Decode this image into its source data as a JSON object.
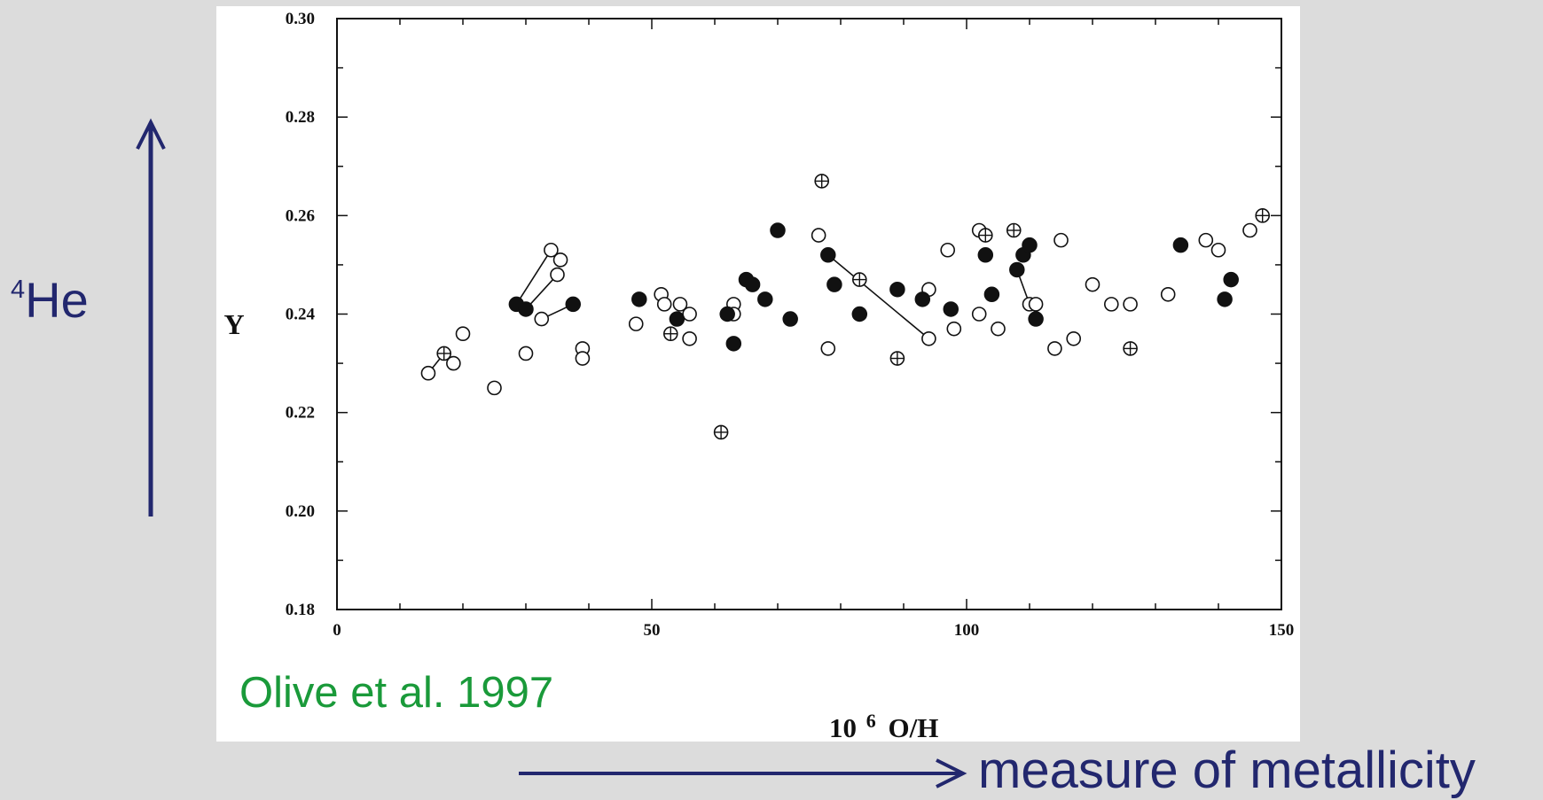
{
  "annotations": {
    "he_mass": "4",
    "he_symbol": "He",
    "metallicity": "measure of metallicity",
    "citation": "Olive et al. 1997"
  },
  "colors": {
    "background": "#dcdcdc",
    "annotation": "#22276e",
    "citation": "#1a9a3a",
    "marker": "#111111"
  },
  "chart_data": {
    "type": "scatter",
    "title": "",
    "xlabel_exp": "6",
    "xlabel_prefix": "10",
    "xlabel_rest": "O/H",
    "ylabel": "Y",
    "xlim": [
      0,
      150
    ],
    "ylim": [
      0.18,
      0.3
    ],
    "xticks": [
      0,
      50,
      100,
      150
    ],
    "xtick_labels": [
      "0",
      "50",
      "100",
      "150"
    ],
    "yticks": [
      0.18,
      0.2,
      0.22,
      0.24,
      0.26,
      0.28,
      0.3
    ],
    "ytick_labels": [
      "0.18",
      "0.20",
      "0.22",
      "0.24",
      "0.26",
      "0.28",
      "0.30"
    ],
    "grid": false,
    "series": [
      {
        "marker": "open-circle",
        "points": [
          [
            14.5,
            0.228
          ],
          [
            18.5,
            0.23
          ],
          [
            20,
            0.236
          ],
          [
            25,
            0.225
          ],
          [
            30,
            0.232
          ],
          [
            32.5,
            0.239
          ],
          [
            34,
            0.253
          ],
          [
            35,
            0.248
          ],
          [
            35.5,
            0.251
          ],
          [
            39,
            0.233
          ],
          [
            39,
            0.231
          ],
          [
            47.5,
            0.238
          ],
          [
            51.5,
            0.244
          ],
          [
            52,
            0.242
          ],
          [
            54.5,
            0.242
          ],
          [
            56,
            0.24
          ],
          [
            56,
            0.235
          ],
          [
            63,
            0.242
          ],
          [
            63,
            0.24
          ],
          [
            76.5,
            0.256
          ],
          [
            78,
            0.233
          ],
          [
            94,
            0.235
          ],
          [
            94,
            0.245
          ],
          [
            97,
            0.253
          ],
          [
            98,
            0.237
          ],
          [
            102,
            0.24
          ],
          [
            102,
            0.257
          ],
          [
            105,
            0.237
          ],
          [
            110,
            0.242
          ],
          [
            111,
            0.242
          ],
          [
            114,
            0.233
          ],
          [
            115,
            0.255
          ],
          [
            117,
            0.235
          ],
          [
            120,
            0.246
          ],
          [
            123,
            0.242
          ],
          [
            126,
            0.242
          ],
          [
            132,
            0.244
          ],
          [
            138,
            0.255
          ],
          [
            140,
            0.253
          ],
          [
            145,
            0.257
          ]
        ]
      },
      {
        "marker": "filled-circle",
        "points": [
          [
            28.5,
            0.242
          ],
          [
            30,
            0.241
          ],
          [
            37.5,
            0.242
          ],
          [
            48,
            0.243
          ],
          [
            54,
            0.239
          ],
          [
            62,
            0.24
          ],
          [
            63,
            0.234
          ],
          [
            65,
            0.247
          ],
          [
            66,
            0.246
          ],
          [
            68,
            0.243
          ],
          [
            70,
            0.257
          ],
          [
            72,
            0.239
          ],
          [
            78,
            0.252
          ],
          [
            79,
            0.246
          ],
          [
            83,
            0.24
          ],
          [
            89,
            0.245
          ],
          [
            93,
            0.243
          ],
          [
            97.5,
            0.241
          ],
          [
            103,
            0.252
          ],
          [
            104,
            0.244
          ],
          [
            108,
            0.249
          ],
          [
            109,
            0.252
          ],
          [
            110,
            0.254
          ],
          [
            111,
            0.239
          ],
          [
            134,
            0.254
          ],
          [
            141,
            0.243
          ],
          [
            142,
            0.247
          ]
        ]
      },
      {
        "marker": "crossed-circle",
        "points": [
          [
            17,
            0.232
          ],
          [
            53,
            0.236
          ],
          [
            61,
            0.216
          ],
          [
            77,
            0.267
          ],
          [
            83,
            0.247
          ],
          [
            89,
            0.231
          ],
          [
            103,
            0.256
          ],
          [
            107.5,
            0.257
          ],
          [
            126,
            0.233
          ],
          [
            147,
            0.26
          ]
        ]
      }
    ],
    "connections": [
      [
        [
          14.5,
          0.228
        ],
        [
          17,
          0.232
        ]
      ],
      [
        [
          28.5,
          0.242
        ],
        [
          34,
          0.253
        ]
      ],
      [
        [
          30,
          0.241
        ],
        [
          35,
          0.248
        ]
      ],
      [
        [
          32.5,
          0.239
        ],
        [
          37.5,
          0.242
        ]
      ],
      [
        [
          78,
          0.252
        ],
        [
          94,
          0.235
        ]
      ],
      [
        [
          108,
          0.249
        ],
        [
          110,
          0.242
        ]
      ]
    ]
  }
}
